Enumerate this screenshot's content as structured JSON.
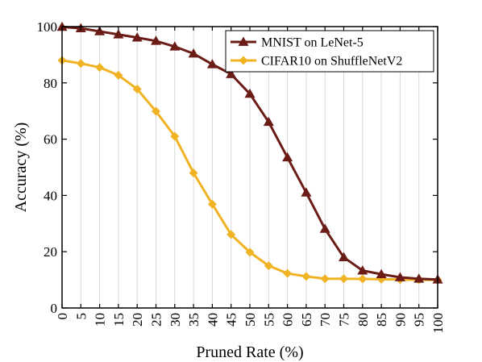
{
  "chart_data": {
    "type": "line",
    "xlabel": "Pruned Rate (%)",
    "ylabel": "Accuracy (%)",
    "x": [
      0,
      5,
      10,
      15,
      20,
      25,
      30,
      35,
      40,
      45,
      50,
      55,
      60,
      65,
      70,
      75,
      80,
      85,
      90,
      95,
      100
    ],
    "xlim": [
      0,
      100
    ],
    "ylim": [
      0,
      100
    ],
    "xticks": [
      "0",
      "5",
      "10",
      "15",
      "20",
      "25",
      "30",
      "35",
      "40",
      "45",
      "50",
      "55",
      "60",
      "65",
      "70",
      "75",
      "80",
      "85",
      "90",
      "95",
      "100"
    ],
    "yticks": [
      "0",
      "20",
      "40",
      "60",
      "80",
      "100"
    ],
    "grid": "vertical",
    "legend_position": "top-right",
    "series": [
      {
        "name": "MNIST on LeNet-5",
        "color": "#6b1c16",
        "marker": "triangle",
        "values": [
          99.9,
          99.4,
          98.3,
          97.2,
          96.1,
          94.9,
          92.9,
          90.4,
          86.6,
          83.1,
          76.1,
          66.1,
          53.5,
          41.0,
          28.1,
          18.0,
          13.3,
          12.0,
          10.9,
          10.4,
          10.1
        ]
      },
      {
        "name": "CIFAR10 on ShuffleNetV2",
        "color": "#f0b323",
        "marker": "diamond",
        "values": [
          88.0,
          86.9,
          85.5,
          82.7,
          77.8,
          69.9,
          61.0,
          48.0,
          36.9,
          26.1,
          19.8,
          15.0,
          12.3,
          11.2,
          10.4,
          10.4,
          10.3,
          10.2,
          10.1,
          10.0,
          10.0
        ]
      }
    ]
  }
}
